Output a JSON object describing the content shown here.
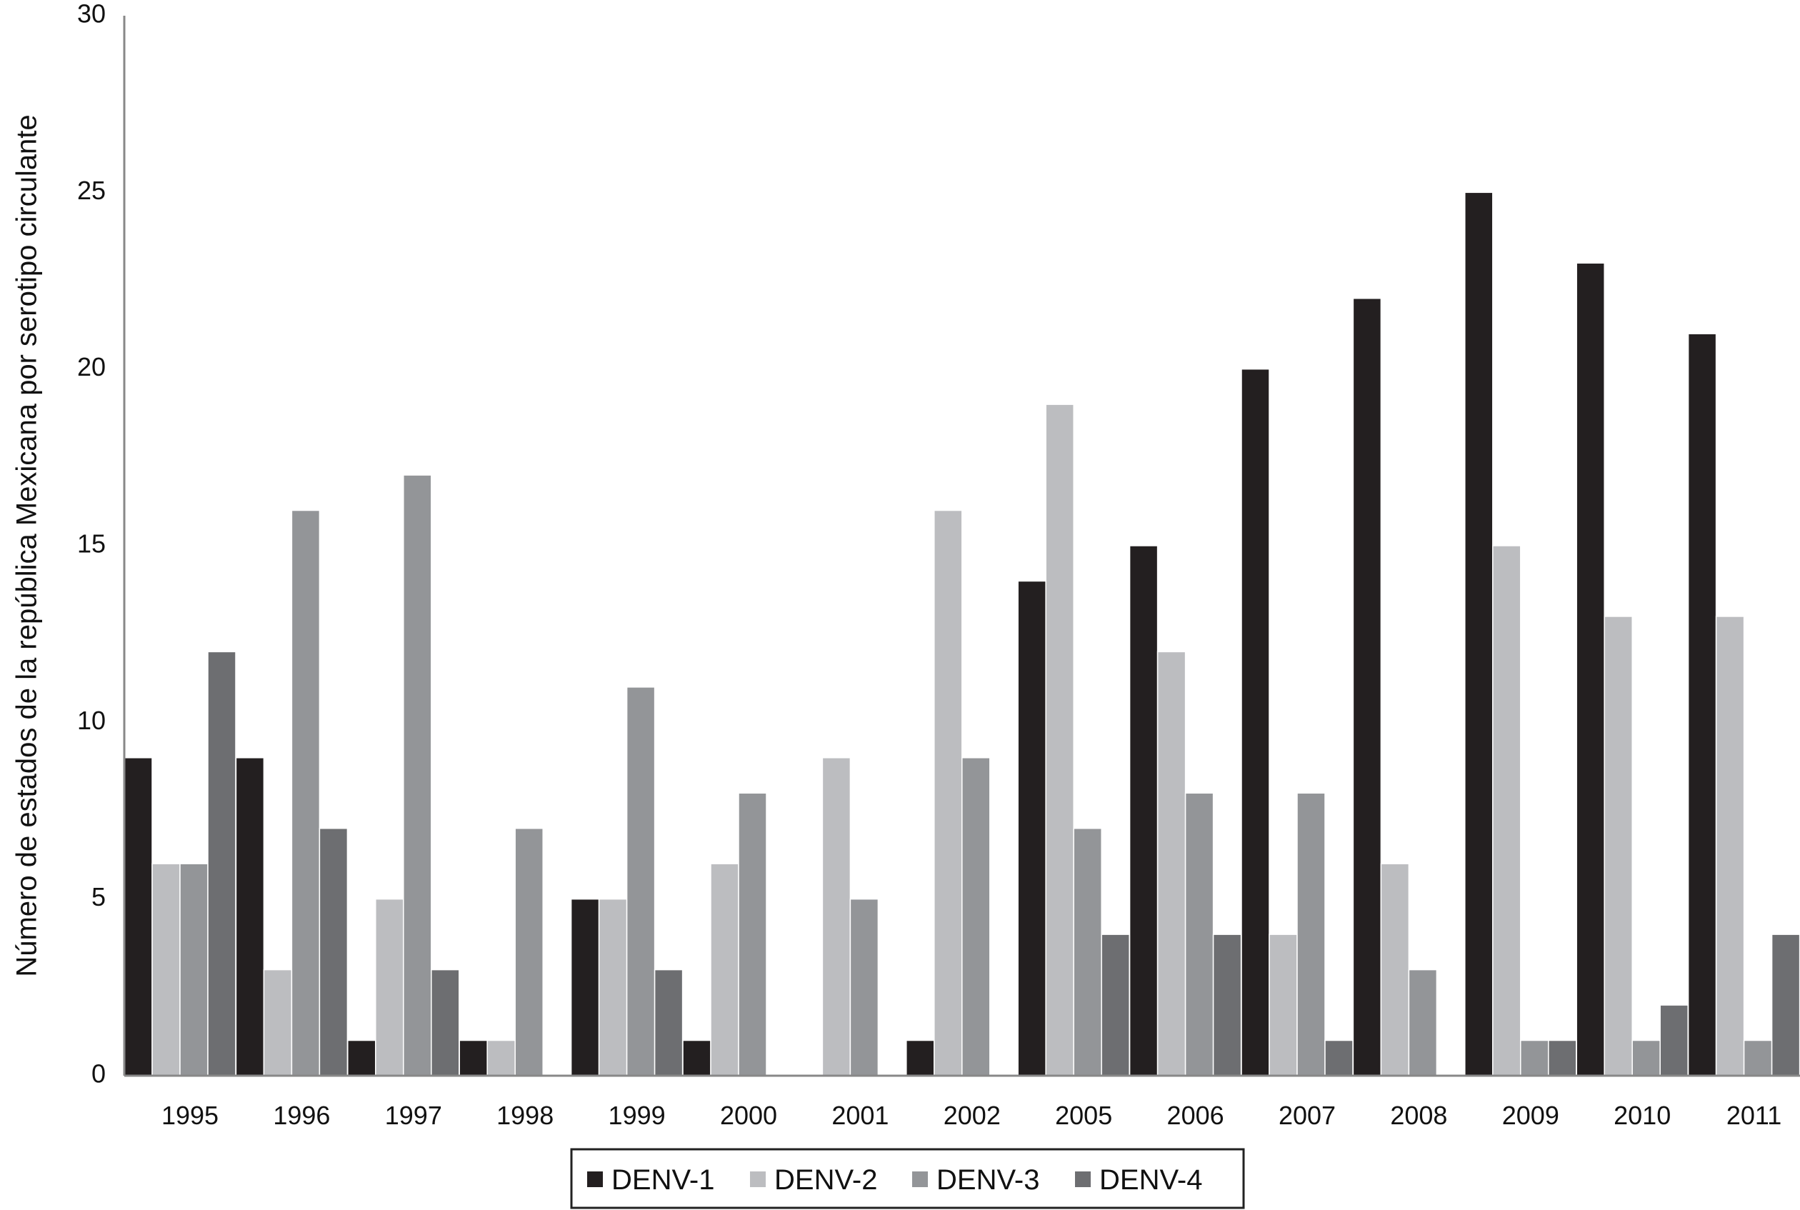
{
  "chart_data": {
    "type": "bar",
    "title": "",
    "xlabel": "",
    "ylabel": "Número de estados de la república Mexicana por serotipo circulante",
    "ylim": [
      0,
      30
    ],
    "yticks": [
      0,
      5,
      10,
      15,
      20,
      25,
      30
    ],
    "grid": false,
    "legend_position": "bottom",
    "categories": [
      "1995",
      "1996",
      "1997",
      "1998",
      "1999",
      "2000",
      "2001",
      "2002",
      "2005",
      "2006",
      "2007",
      "2008",
      "2009",
      "2010",
      "2011"
    ],
    "series": [
      {
        "name": "DENV-1",
        "color": "#231f20",
        "values": [
          9,
          9,
          1,
          1,
          5,
          1,
          0,
          1,
          14,
          15,
          20,
          22,
          25,
          23,
          21
        ]
      },
      {
        "name": "DENV-2",
        "color": "#bcbdc0",
        "values": [
          6,
          3,
          5,
          1,
          5,
          6,
          9,
          16,
          19,
          12,
          4,
          6,
          15,
          13,
          13
        ]
      },
      {
        "name": "DENV-3",
        "color": "#939598",
        "values": [
          6,
          16,
          17,
          7,
          11,
          8,
          5,
          9,
          7,
          8,
          8,
          3,
          1,
          1,
          1
        ]
      },
      {
        "name": "DENV-4",
        "color": "#6d6e71",
        "values": [
          12,
          7,
          3,
          0,
          3,
          0,
          0,
          0,
          4,
          4,
          1,
          0,
          1,
          2,
          4
        ]
      }
    ]
  }
}
